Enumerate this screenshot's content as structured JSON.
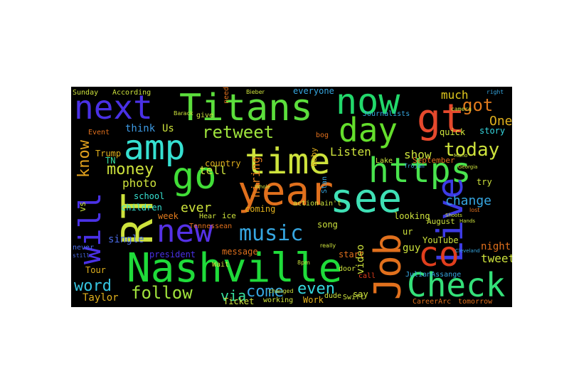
{
  "words": [
    {
      "t": "Nashville",
      "c": "#1fdb3a"
    },
    {
      "t": "Titans",
      "c": "#5cde3c"
    },
    {
      "t": "now",
      "c": "#22d86b"
    },
    {
      "t": "next",
      "c": "#4a31e6"
    },
    {
      "t": "gt",
      "c": "#e5492d"
    },
    {
      "t": "amp",
      "c": "#36e0d1"
    },
    {
      "t": "time",
      "c": "#cde23c"
    },
    {
      "t": "https",
      "c": "#49e34d"
    },
    {
      "t": "day",
      "c": "#64de2c"
    },
    {
      "t": "year",
      "c": "#e0701d"
    },
    {
      "t": "see",
      "c": "#3fe0b5"
    },
    {
      "t": "go",
      "c": "#41dd37"
    },
    {
      "t": "RT",
      "c": "#cde23c"
    },
    {
      "t": "will",
      "c": "#4a31e6"
    },
    {
      "t": "new",
      "c": "#5531e6"
    },
    {
      "t": "Live",
      "c": "#3d3be5"
    },
    {
      "t": "Job",
      "c": "#e0701d"
    },
    {
      "t": "co",
      "c": "#e03e1d"
    },
    {
      "t": "Check",
      "c": "#34e079"
    },
    {
      "t": "music",
      "c": "#36a6e0"
    },
    {
      "t": "retweet",
      "c": "#9de23c"
    },
    {
      "t": "today",
      "c": "#cde23c"
    },
    {
      "t": "got",
      "c": "#e07a1d"
    },
    {
      "t": "know",
      "c": "#e0a01d"
    },
    {
      "t": "money",
      "c": "#cde23c"
    },
    {
      "t": "follow",
      "c": "#a0e23c"
    },
    {
      "t": "word",
      "c": "#36c4e0"
    },
    {
      "t": "come",
      "c": "#36a6e0"
    },
    {
      "t": "even",
      "c": "#36d8e0"
    },
    {
      "t": "via",
      "c": "#36e0a0"
    },
    {
      "t": "ever",
      "c": "#cde23c"
    },
    {
      "t": "tell",
      "c": "#cde23c"
    },
    {
      "t": "One",
      "c": "#e0b01d"
    },
    {
      "t": "much",
      "c": "#e0c81d"
    },
    {
      "t": "Listen",
      "c": "#cde23c"
    },
    {
      "t": "show",
      "c": "#cde23c"
    },
    {
      "t": "change",
      "c": "#36a6e0"
    },
    {
      "t": "photo",
      "c": "#cde23c"
    },
    {
      "t": "hiring",
      "c": "#e07a1d"
    },
    {
      "t": "single",
      "c": "#4a6ae6"
    },
    {
      "t": "tweet",
      "c": "#cde23c"
    },
    {
      "t": "night",
      "c": "#e0701d"
    },
    {
      "t": "guy",
      "c": "#cde23c"
    },
    {
      "t": "video",
      "c": "#cde23c"
    },
    {
      "t": "Taylor",
      "c": "#e0b01d"
    },
    {
      "t": "think",
      "c": "#3d9be5"
    },
    {
      "t": "Us",
      "c": "#cde23c"
    },
    {
      "t": "Trump",
      "c": "#e0b01d"
    },
    {
      "t": "TN",
      "c": "#36e0a0"
    },
    {
      "t": "vs",
      "c": "#cde23c"
    },
    {
      "t": "country",
      "c": "#e0b01d"
    },
    {
      "t": "children",
      "c": "#36e0d1"
    },
    {
      "t": "school",
      "c": "#36e0d1"
    },
    {
      "t": "week",
      "c": "#e07a1d"
    },
    {
      "t": "Tour",
      "c": "#e0b01d"
    },
    {
      "t": "president",
      "c": "#4a31e6"
    },
    {
      "t": "message",
      "c": "#e0701d"
    },
    {
      "t": "coming",
      "c": "#e0b01d"
    },
    {
      "t": "looking",
      "c": "#cde23c"
    },
    {
      "t": "song",
      "c": "#cde23c"
    },
    {
      "t": "Ticket",
      "c": "#cde23c"
    },
    {
      "t": "working",
      "c": "#cde23c"
    },
    {
      "t": "Work",
      "c": "#e0b01d"
    },
    {
      "t": "say",
      "c": "#cde23c"
    },
    {
      "t": "start",
      "c": "#e0701d"
    },
    {
      "t": "ur",
      "c": "#cde23c"
    },
    {
      "t": "YouTube",
      "c": "#cde23c"
    },
    {
      "t": "August",
      "c": "#cde23c"
    },
    {
      "t": "September",
      "c": "#e0701d"
    },
    {
      "t": "try",
      "c": "#cde23c"
    },
    {
      "t": "story",
      "c": "#36d8e0"
    },
    {
      "t": "quick",
      "c": "#cde23c"
    },
    {
      "t": "Sunday",
      "c": "#cde23c"
    },
    {
      "t": "According",
      "c": "#cde23c"
    },
    {
      "t": "everyone",
      "c": "#36a6e0"
    },
    {
      "t": "Journalists",
      "c": "#36a6e0"
    },
    {
      "t": "Event",
      "c": "#e0701d"
    },
    {
      "t": "give",
      "c": "#cde23c"
    },
    {
      "t": "need",
      "c": "#e0701d"
    },
    {
      "t": "baby",
      "c": "#e0b01d"
    },
    {
      "t": "Tennessean",
      "c": "#e0701d"
    },
    {
      "t": "Hear",
      "c": "#cde23c"
    },
    {
      "t": "ice",
      "c": "#cde23c"
    },
    {
      "t": "call",
      "c": "#e03e1d"
    },
    {
      "t": "JulianAssange",
      "c": "#36a6e0"
    },
    {
      "t": "CareerArc",
      "c": "#e0701d"
    },
    {
      "t": "tomorrow",
      "c": "#e0701d"
    },
    {
      "t": "Swift",
      "c": "#cde23c"
    },
    {
      "t": "dude",
      "c": "#cde23c"
    },
    {
      "t": "never",
      "c": "#4a6ae6"
    },
    {
      "t": "still",
      "c": "#4a6ae6"
    },
    {
      "t": "door",
      "c": "#cde23c"
    },
    {
      "t": "Wait",
      "c": "#cde23c"
    },
    {
      "t": "ain't",
      "c": "#cde23c"
    },
    {
      "t": "action",
      "c": "#cde23c"
    },
    {
      "t": "Stan",
      "c": "#36a6e0"
    },
    {
      "t": "Lake",
      "c": "#cde23c"
    },
    {
      "t": "Trojan",
      "c": "#36a6e0"
    },
    {
      "t": "camera",
      "c": "#cde23c"
    },
    {
      "t": "right",
      "c": "#36a6e0"
    },
    {
      "t": "Bieber",
      "c": "#cde23c"
    },
    {
      "t": "Barack",
      "c": "#cde23c"
    },
    {
      "t": "Whole",
      "c": "#cde23c"
    },
    {
      "t": "changed",
      "c": "#cde23c"
    },
    {
      "t": "really",
      "c": "#cde23c"
    },
    {
      "t": "bog",
      "c": "#e0701d"
    },
    {
      "t": "8pm",
      "c": "#cde23c"
    },
    {
      "t": "Cleveland",
      "c": "#36a6e0"
    },
    {
      "t": "Georgia",
      "c": "#cde23c"
    },
    {
      "t": "Mario",
      "c": "#cde23c"
    },
    {
      "t": "Shoots",
      "c": "#cde23c"
    },
    {
      "t": "Hands",
      "c": "#cde23c"
    },
    {
      "t": "lost",
      "c": "#e0701d"
    }
  ]
}
